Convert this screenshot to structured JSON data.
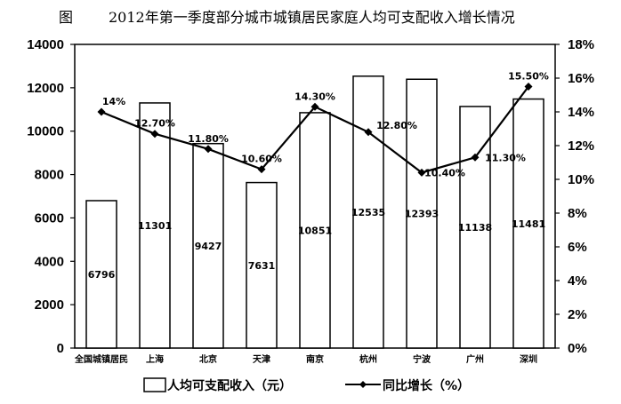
{
  "figure_label": "图",
  "chart_data": {
    "type": "bar",
    "title": "2012年第一季度部分城市城镇居民家庭人均可支配收入增长情况",
    "categories": [
      "全国城镇居民",
      "上海",
      "北京",
      "天津",
      "南京",
      "杭州",
      "宁波",
      "广州",
      "深圳"
    ],
    "series": [
      {
        "name": "人均可支配收入（元）",
        "type": "bar",
        "axis": "left",
        "values": [
          6796,
          11301,
          9427,
          7631,
          10851,
          12535,
          12393,
          11138,
          11481
        ],
        "labels": [
          "6796",
          "11301",
          "9427",
          "7631",
          "10851",
          "12535",
          "12393",
          "11138",
          "11481"
        ]
      },
      {
        "name": "同比增长（%）",
        "type": "line",
        "axis": "right",
        "values": [
          14,
          12.7,
          11.8,
          10.6,
          14.3,
          12.8,
          10.4,
          11.3,
          15.5
        ],
        "labels": [
          "14%",
          "12.70%",
          "11.80%",
          "10.60%",
          "14.30%",
          "12.80%",
          "10.40%",
          "11.30%",
          "15.50%"
        ]
      }
    ],
    "ylim": [
      0,
      14000
    ],
    "y_ticks": [
      "0",
      "2000",
      "4000",
      "6000",
      "8000",
      "10000",
      "12000",
      "14000"
    ],
    "y2lim": [
      0,
      18
    ],
    "y2_ticks": [
      "0%",
      "2%",
      "4%",
      "6%",
      "8%",
      "10%",
      "12%",
      "14%",
      "16%",
      "18%"
    ],
    "grid": false,
    "legend_position": "bottom",
    "colors": {
      "bar_fill": "#ffffff",
      "bar_stroke": "#000000",
      "line": "#000000"
    }
  }
}
